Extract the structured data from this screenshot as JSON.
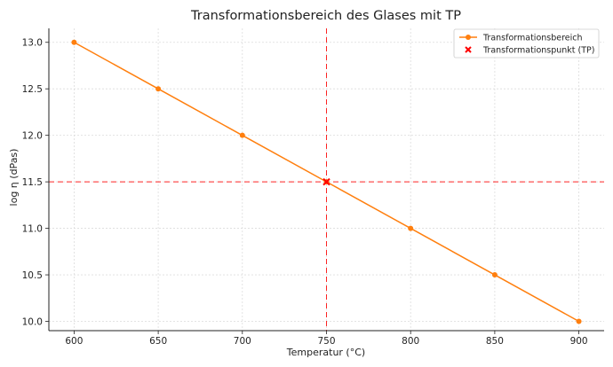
{
  "chart_data": {
    "type": "line",
    "title": "Transformationsbereich des Glases mit TP",
    "xlabel": "Temperatur (°C)",
    "ylabel": "log η (dPas)",
    "xlim": [
      585,
      915
    ],
    "ylim": [
      9.9,
      13.15
    ],
    "xticks": [
      600,
      650,
      700,
      750,
      800,
      850,
      900
    ],
    "yticks": [
      10.0,
      10.5,
      11.0,
      11.5,
      12.0,
      12.5,
      13.0
    ],
    "xtick_labels": [
      "600",
      "650",
      "700",
      "750",
      "800",
      "850",
      "900"
    ],
    "ytick_labels": [
      "10.0",
      "10.5",
      "11.0",
      "11.5",
      "12.0",
      "12.5",
      "13.0"
    ],
    "grid": true,
    "legend_position": "top-right",
    "series": [
      {
        "name": "Transformationsbereich",
        "color": "#ff7f0e",
        "marker": "circle",
        "x": [
          600,
          650,
          700,
          750,
          800,
          850,
          900
        ],
        "y": [
          13.0,
          12.5,
          12.0,
          11.5,
          11.0,
          10.5,
          10.0
        ]
      }
    ],
    "points": [
      {
        "name": "Transformationspunkt (TP)",
        "color": "#ff0000",
        "marker": "x",
        "x": 750,
        "y": 11.5
      }
    ],
    "reference_lines": [
      {
        "orientation": "vertical",
        "value": 750,
        "color": "#ff0000",
        "style": "dashed"
      },
      {
        "orientation": "horizontal",
        "value": 11.5,
        "color": "#ff0000",
        "style": "dashed"
      }
    ]
  }
}
